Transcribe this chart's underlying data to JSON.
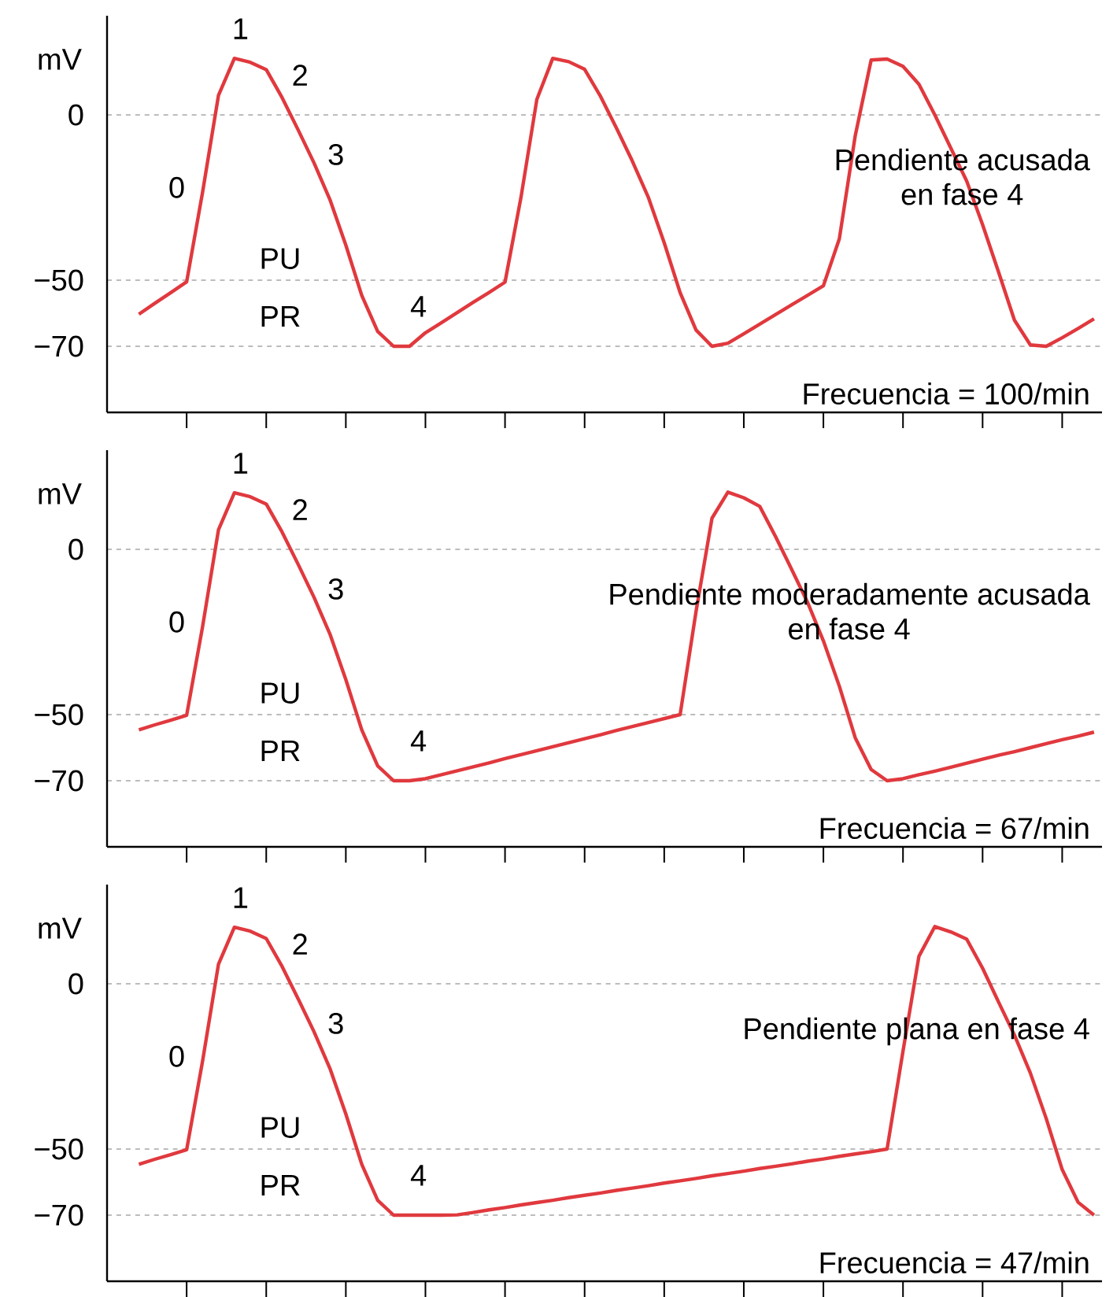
{
  "chart_data": [
    {
      "type": "line",
      "ylabel": "mV",
      "ylim": [
        -90,
        30
      ],
      "categories": [
        null,
        null,
        null,
        null,
        null,
        null,
        null,
        null,
        null,
        null,
        null,
        null,
        null,
        null,
        null,
        null,
        null,
        null,
        null,
        null,
        null,
        null,
        null,
        null,
        null,
        null,
        null,
        null,
        null,
        null,
        null,
        null,
        null,
        null,
        null,
        null,
        null,
        null,
        null,
        null,
        null,
        null,
        null,
        null,
        null,
        null,
        null,
        null,
        null,
        null,
        null,
        null,
        null,
        null,
        null,
        null,
        null,
        null,
        null,
        null,
        null
      ],
      "yticks": [
        {
          "value": 0,
          "label": "0"
        },
        {
          "value": -50,
          "label": "−50"
        },
        {
          "value": -70,
          "label": "−70"
        }
      ],
      "grid": "y",
      "tick_labels": "y",
      "marker": "none",
      "series": [
        {
          "color": "#e0393e",
          "values": [
            -60.3,
            -57.0,
            -53.8,
            -50.5,
            -23.4,
            5.9,
            17.1,
            15.9,
            13.7,
            5.2,
            -4.5,
            -14.5,
            -25.6,
            -39.4,
            -54.6,
            -65.5,
            -70,
            -70,
            -65.9,
            -62.9,
            -59.8,
            -56.7,
            -53.7,
            -50.6,
            -25,
            4.7,
            17.1,
            16.1,
            13.8,
            5.6,
            -4,
            -14,
            -24.9,
            -38.7,
            -53.8,
            -65.1,
            -70,
            -69.1,
            -66.2,
            -63.3,
            -60.4,
            -57.5,
            -54.6,
            -51.7,
            -37.5,
            -6.3,
            16.6,
            16.9,
            14.7,
            9.3,
            0,
            -10,
            -20,
            -33.2,
            -47.5,
            -62.1,
            -69.6,
            -70,
            -67.4,
            -64.6,
            -61.7
          ]
        }
      ],
      "annotations": [
        "0",
        "1",
        "2",
        "3",
        "4",
        "PU",
        "PR",
        "Pendiente acusada",
        "en fase 4",
        "Frecuencia = 100/min"
      ]
    },
    {
      "type": "line",
      "ylabel": "mV",
      "ylim": [
        -90,
        30
      ],
      "categories": [
        null,
        null,
        null,
        null,
        null,
        null,
        null,
        null,
        null,
        null,
        null,
        null,
        null,
        null,
        null,
        null,
        null,
        null,
        null,
        null,
        null,
        null,
        null,
        null,
        null,
        null,
        null,
        null,
        null,
        null,
        null,
        null,
        null,
        null,
        null,
        null,
        null,
        null,
        null,
        null,
        null,
        null,
        null,
        null,
        null,
        null,
        null,
        null,
        null,
        null,
        null,
        null,
        null,
        null,
        null,
        null,
        null,
        null,
        null,
        null,
        null
      ],
      "yticks": [
        {
          "value": 0,
          "label": "0"
        },
        {
          "value": -50,
          "label": "−50"
        },
        {
          "value": -70,
          "label": "−70"
        }
      ],
      "grid": "y",
      "tick_labels": "y",
      "marker": "none",
      "series": [
        {
          "color": "#e0393e",
          "values": [
            -54.6,
            -53.1,
            -51.7,
            -50.2,
            -23.4,
            5.9,
            17.1,
            15.9,
            13.7,
            5.2,
            -4.5,
            -14.5,
            -25.6,
            -39.4,
            -54.6,
            -65.5,
            -70,
            -70,
            -69.4,
            -68.2,
            -67.0,
            -65.8,
            -64.6,
            -63.3,
            -62.1,
            -60.9,
            -59.7,
            -58.5,
            -57.3,
            -56.1,
            -54.8,
            -53.6,
            -52.4,
            -51.2,
            -50,
            -18.8,
            9.4,
            17.3,
            15.6,
            13.0,
            3.8,
            -6,
            -16,
            -27.7,
            -41.4,
            -57,
            -66.6,
            -70,
            -69.4,
            -68.2,
            -67.1,
            -65.9,
            -64.7,
            -63.5,
            -62.3,
            -61.2,
            -60,
            -58.8,
            -57.6,
            -56.5,
            -55.3
          ]
        }
      ],
      "annotations": [
        "0",
        "1",
        "2",
        "3",
        "4",
        "PU",
        "PR",
        "Pendiente moderadamente acusada",
        "en fase 4",
        "Frecuencia = 67/min"
      ]
    },
    {
      "type": "line",
      "ylabel": "mV",
      "ylim": [
        -90,
        30
      ],
      "categories": [
        null,
        null,
        null,
        null,
        null,
        null,
        null,
        null,
        null,
        null,
        null,
        null,
        null,
        null,
        null,
        null,
        null,
        null,
        null,
        null,
        null,
        null,
        null,
        null,
        null,
        null,
        null,
        null,
        null,
        null,
        null,
        null,
        null,
        null,
        null,
        null,
        null,
        null,
        null,
        null,
        null,
        null,
        null,
        null,
        null,
        null,
        null,
        null,
        null,
        null,
        null,
        null,
        null,
        null,
        null,
        null,
        null,
        null,
        null,
        null,
        null
      ],
      "yticks": [
        {
          "value": 0,
          "label": "0"
        },
        {
          "value": -50,
          "label": "−50"
        },
        {
          "value": -70,
          "label": "−70"
        }
      ],
      "grid": "y",
      "tick_labels": "y",
      "marker": "none",
      "series": [
        {
          "color": "#e0393e",
          "values": [
            -54.6,
            -53.1,
            -51.7,
            -50.2,
            -23.4,
            5.9,
            17.1,
            15.9,
            13.7,
            5.2,
            -4.5,
            -14.5,
            -25.6,
            -39.4,
            -54.6,
            -65.5,
            -70,
            -70,
            -70,
            -70,
            -69.9,
            -69.2,
            -68.4,
            -67.7,
            -66.9,
            -66.2,
            -65.5,
            -64.7,
            -64.0,
            -63.3,
            -62.5,
            -61.8,
            -61.1,
            -60.3,
            -59.6,
            -58.9,
            -58.1,
            -57.4,
            -56.7,
            -55.9,
            -55.2,
            -54.5,
            -53.7,
            -53.0,
            -52.2,
            -51.5,
            -50.8,
            -50.0,
            -20.4,
            8.3,
            17.3,
            15.7,
            13.5,
            4.7,
            -5.5,
            -15.5,
            -27,
            -40.8,
            -56.2,
            -66.1,
            -70
          ]
        }
      ],
      "annotations": [
        "0",
        "1",
        "2",
        "3",
        "4",
        "PU",
        "PR",
        "Pendiente plana en fase 4",
        "Frecuencia = 47/min"
      ]
    }
  ]
}
